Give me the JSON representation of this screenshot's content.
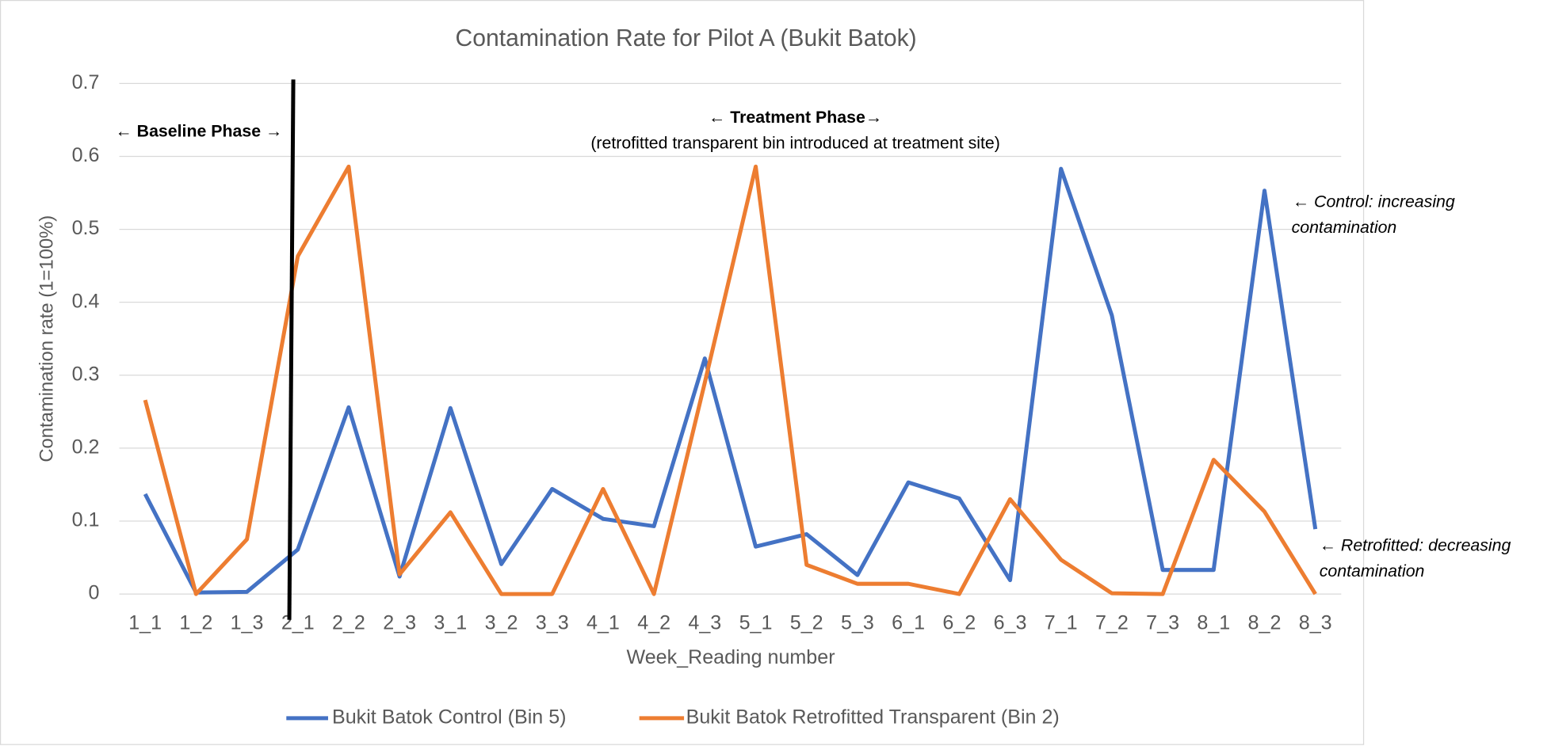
{
  "chart_data": {
    "type": "line",
    "title": "Contamination Rate for Pilot A (Bukit Batok)",
    "x_label": "Week_Reading number",
    "y_label": "Contamination rate (1=100%)",
    "categories": [
      "1_1",
      "1_2",
      "1_3",
      "2_1",
      "2_2",
      "2_3",
      "3_1",
      "3_2",
      "3_3",
      "4_1",
      "4_2",
      "4_3",
      "5_1",
      "5_2",
      "5_3",
      "6_1",
      "6_2",
      "6_3",
      "7_1",
      "7_2",
      "7_3",
      "8_1",
      "8_2",
      "8_3"
    ],
    "series": [
      {
        "name": "Bukit Batok Control (Bin 5)",
        "color": "#4472c4",
        "values": [
          0.137,
          0.002,
          0.003,
          0.061,
          0.256,
          0.024,
          0.255,
          0.041,
          0.144,
          0.103,
          0.093,
          0.323,
          0.065,
          0.082,
          0.026,
          0.153,
          0.131,
          0.019,
          0.583,
          0.382,
          0.033,
          0.033,
          0.553,
          0.089
        ]
      },
      {
        "name": "Bukit Batok Retrofitted Transparent (Bin 2)",
        "color": "#ed7d31",
        "values": [
          0.266,
          0,
          0.075,
          0.463,
          0.586,
          0.027,
          0.112,
          0,
          0,
          0.144,
          0,
          0.29,
          0.586,
          0.04,
          0.014,
          0.014,
          0,
          0.13,
          0.047,
          0.001,
          0,
          0.184,
          0.113,
          0
        ]
      }
    ],
    "ylim": [
      0,
      0.7
    ],
    "yticks": [
      0,
      0.1,
      0.2,
      0.3,
      0.4,
      0.5,
      0.6,
      0.7
    ],
    "grid": true,
    "legend": "bottom",
    "annotations": [
      {
        "text": "← Baseline Phase →",
        "style": "bold"
      },
      {
        "text": "← Treatment Phase→",
        "style": "bold"
      },
      {
        "text": "(retrofitted transparent bin introduced at treatment site)",
        "style": "normal"
      },
      {
        "text": "← Control: increasing",
        "style": "italic"
      },
      {
        "text": "contamination",
        "style": "italic"
      },
      {
        "text": "← Retrofitted: decreasing",
        "style": "italic"
      },
      {
        "text": "contamination",
        "style": "italic"
      }
    ]
  }
}
